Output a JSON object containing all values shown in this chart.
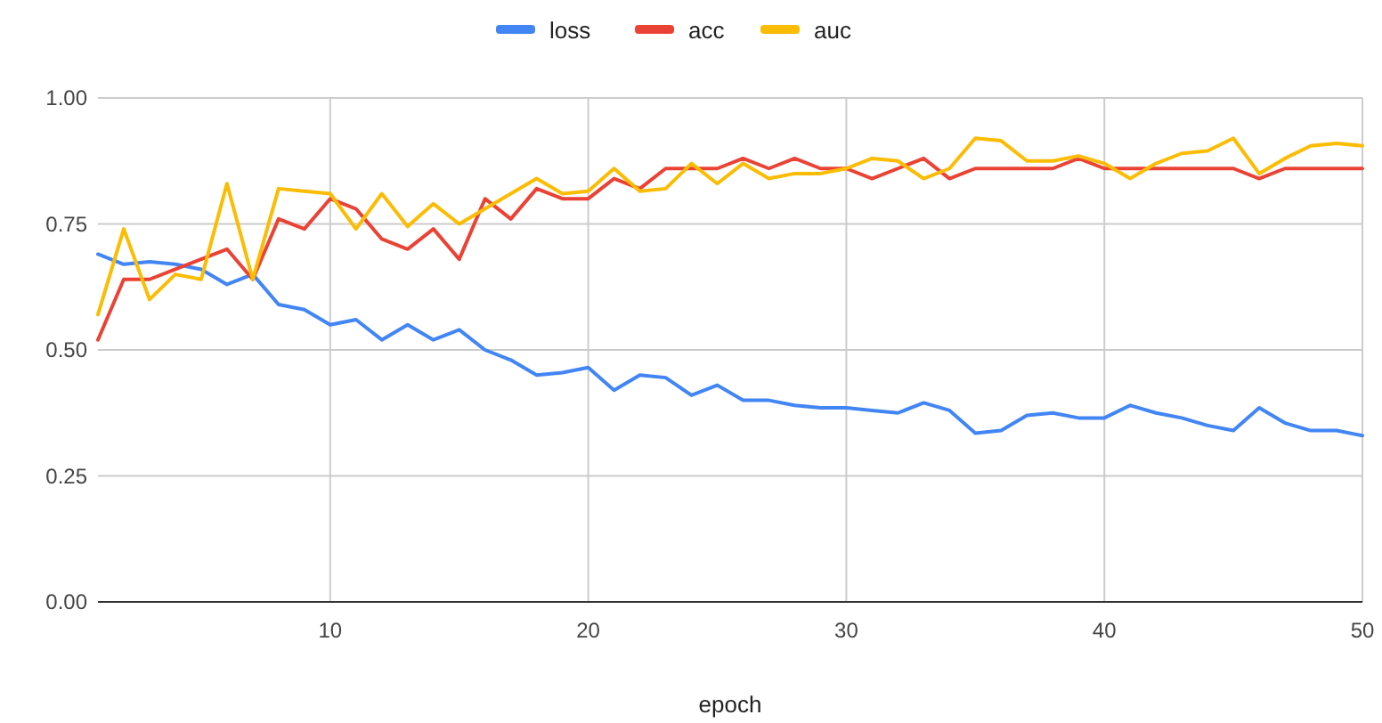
{
  "chart_data": {
    "type": "line",
    "xlabel": "epoch",
    "x": [
      1,
      2,
      3,
      4,
      5,
      6,
      7,
      8,
      9,
      10,
      11,
      12,
      13,
      14,
      15,
      16,
      17,
      18,
      19,
      20,
      21,
      22,
      23,
      24,
      25,
      26,
      27,
      28,
      29,
      30,
      31,
      32,
      33,
      34,
      35,
      36,
      37,
      38,
      39,
      40,
      41,
      42,
      43,
      44,
      45,
      46,
      47,
      48,
      49,
      50
    ],
    "series": [
      {
        "name": "loss",
        "color": "#4285f4",
        "values": [
          0.69,
          0.67,
          0.675,
          0.67,
          0.66,
          0.63,
          0.65,
          0.59,
          0.58,
          0.55,
          0.56,
          0.52,
          0.55,
          0.52,
          0.54,
          0.5,
          0.48,
          0.45,
          0.455,
          0.465,
          0.42,
          0.45,
          0.445,
          0.41,
          0.43,
          0.4,
          0.4,
          0.39,
          0.385,
          0.385,
          0.38,
          0.375,
          0.395,
          0.38,
          0.335,
          0.34,
          0.37,
          0.375,
          0.365,
          0.365,
          0.39,
          0.375,
          0.365,
          0.35,
          0.34,
          0.385,
          0.355,
          0.34,
          0.34,
          0.33
        ]
      },
      {
        "name": "acc",
        "color": "#ea4335",
        "values": [
          0.52,
          0.64,
          0.64,
          0.66,
          0.68,
          0.7,
          0.64,
          0.76,
          0.74,
          0.8,
          0.78,
          0.72,
          0.7,
          0.74,
          0.68,
          0.8,
          0.76,
          0.82,
          0.8,
          0.8,
          0.84,
          0.82,
          0.86,
          0.86,
          0.86,
          0.88,
          0.86,
          0.88,
          0.86,
          0.86,
          0.84,
          0.86,
          0.88,
          0.84,
          0.86,
          0.86,
          0.86,
          0.86,
          0.88,
          0.86,
          0.86,
          0.86,
          0.86,
          0.86,
          0.86,
          0.84,
          0.86,
          0.86,
          0.86,
          0.86
        ]
      },
      {
        "name": "auc",
        "color": "#fbbc04",
        "values": [
          0.57,
          0.74,
          0.6,
          0.65,
          0.64,
          0.83,
          0.64,
          0.82,
          0.815,
          0.81,
          0.74,
          0.81,
          0.745,
          0.79,
          0.75,
          0.78,
          0.81,
          0.84,
          0.81,
          0.815,
          0.86,
          0.815,
          0.82,
          0.87,
          0.83,
          0.87,
          0.84,
          0.85,
          0.85,
          0.86,
          0.88,
          0.875,
          0.84,
          0.86,
          0.92,
          0.915,
          0.875,
          0.875,
          0.885,
          0.87,
          0.84,
          0.87,
          0.89,
          0.895,
          0.92,
          0.85,
          0.88,
          0.905,
          0.91,
          0.905
        ]
      }
    ],
    "xlim": [
      1,
      50
    ],
    "xticks": [
      10,
      20,
      30,
      40,
      50
    ],
    "ylim": [
      0,
      1
    ],
    "yticks": [
      {
        "value": 0,
        "label": "0.00"
      },
      {
        "value": 0.25,
        "label": "0.25"
      },
      {
        "value": 0.5,
        "label": "0.50"
      },
      {
        "value": 0.75,
        "label": "0.75"
      },
      {
        "value": 1,
        "label": "1.00"
      }
    ],
    "grid": true,
    "legend": "top",
    "marker": "none",
    "line_style": "solid"
  }
}
